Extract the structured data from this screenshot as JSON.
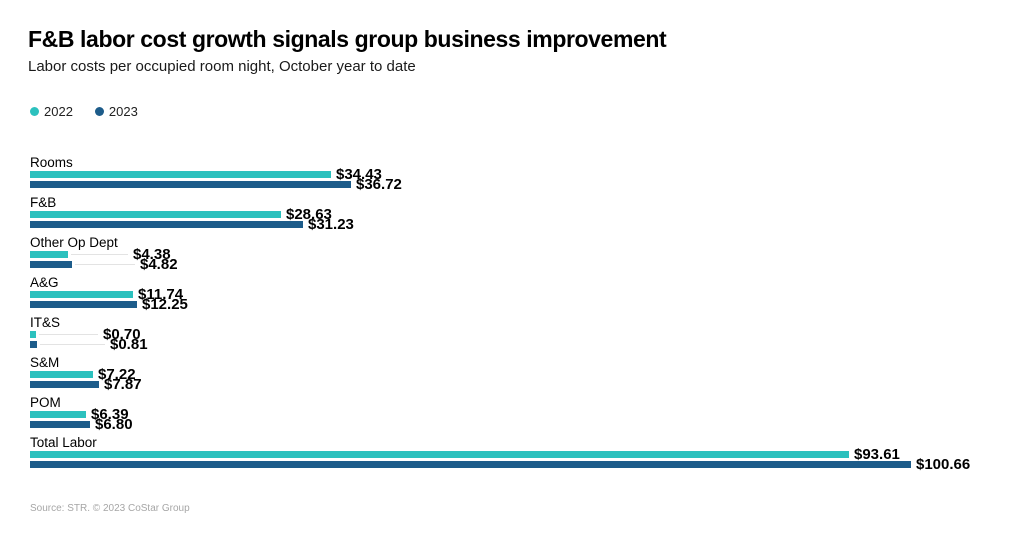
{
  "header": {
    "title": "F&B labor cost growth signals group business improvement",
    "subtitle": "Labor costs per occupied room night, October year to date"
  },
  "legend": [
    {
      "label": "2022",
      "color": "#2cc1be"
    },
    {
      "label": "2023",
      "color": "#1d5c8a"
    }
  ],
  "footer": {
    "source": "Source: STR. © 2023 CoStar Group"
  },
  "chart_data": {
    "type": "bar",
    "orientation": "horizontal",
    "title": "F&B labor cost growth signals group business improvement",
    "subtitle": "Labor costs per occupied room night, October year to date",
    "xlabel": "",
    "ylabel": "",
    "xlim": [
      0,
      105
    ],
    "grid": false,
    "legend_position": "top-left",
    "value_format": "USD per occupied room night",
    "categories": [
      "Rooms",
      "F&B",
      "Other Op Dept",
      "A&G",
      "IT&S",
      "S&M",
      "POM",
      "Total Labor"
    ],
    "series": [
      {
        "name": "2022",
        "color": "#2cc1be",
        "values": [
          34.43,
          28.63,
          4.38,
          11.74,
          0.7,
          7.22,
          6.39,
          93.61
        ],
        "labels": [
          "$34.43",
          "$28.63",
          "$4.38",
          "$11.74",
          "$0.70",
          "$7.22",
          "$6.39",
          "$93.61"
        ]
      },
      {
        "name": "2023",
        "color": "#1d5c8a",
        "values": [
          36.72,
          31.23,
          4.82,
          12.25,
          0.81,
          7.87,
          6.8,
          100.66
        ],
        "labels": [
          "$36.72",
          "$31.23",
          "$4.82",
          "$12.25",
          "$0.81",
          "$7.87",
          "$6.80",
          "$100.66"
        ]
      }
    ]
  }
}
